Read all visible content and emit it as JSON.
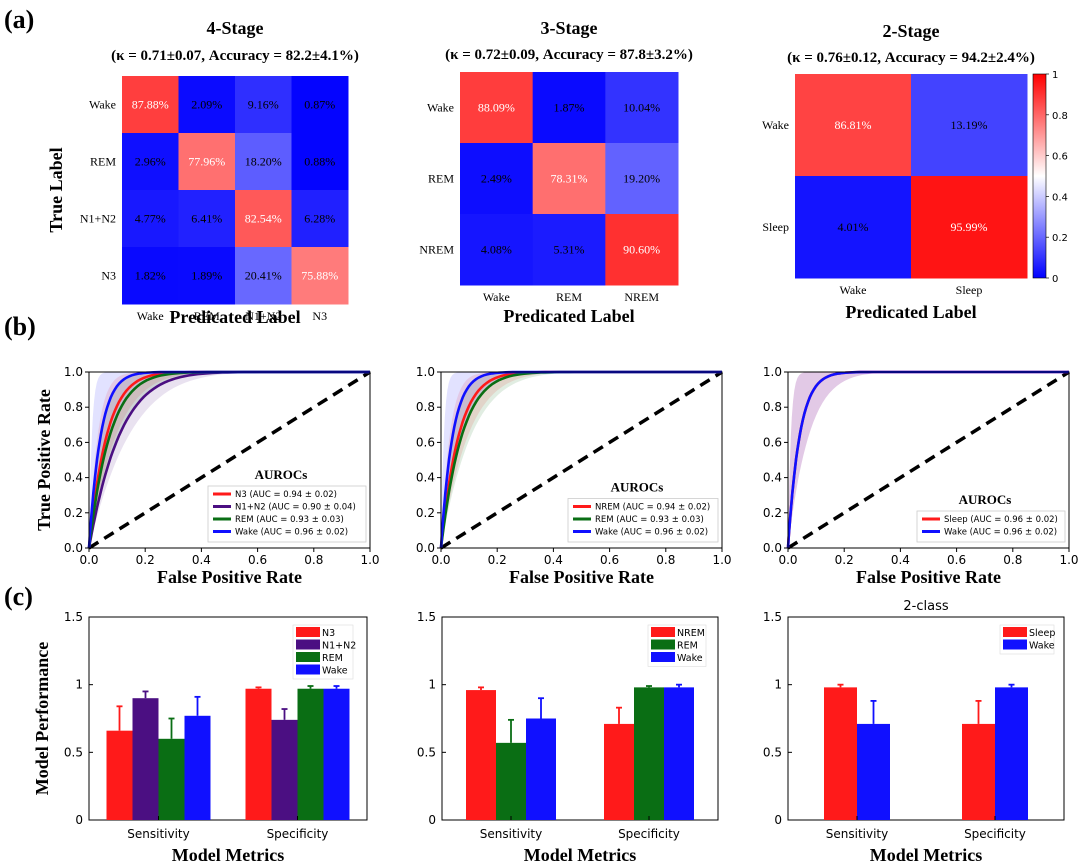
{
  "panel_labels": [
    "(a)",
    "(b)",
    "(c)"
  ],
  "colors": {
    "n3": "#ff1a1a",
    "n1n2": "#4b0f82",
    "rem": "#0a6e14",
    "wake": "#1010ff",
    "nrem": "#ff1a1a",
    "sleep": "#ff1a1a"
  },
  "chart_data": [
    {
      "type": "heatmap",
      "title": "4-Stage",
      "subtitle": "(κ = 0.71±0.07,  Accuracy = 82.2±4.1%)",
      "ylabel": "True Label",
      "xlabel": "Predicated Label",
      "rows": [
        "Wake",
        "REM",
        "N1+N2",
        "N3"
      ],
      "cols": [
        "Wake",
        "REM",
        "N1+N2",
        "N3"
      ],
      "values": [
        [
          87.88,
          2.09,
          9.16,
          0.87
        ],
        [
          2.96,
          77.96,
          18.2,
          0.88
        ],
        [
          4.77,
          6.41,
          82.54,
          6.28
        ],
        [
          1.82,
          1.89,
          20.41,
          75.88
        ]
      ],
      "cell_labels": [
        [
          "87.88%",
          "2.09%",
          "9.16%",
          "0.87%"
        ],
        [
          "2.96%",
          "77.96%",
          "18.20%",
          "0.88%"
        ],
        [
          "4.77%",
          "6.41%",
          "82.54%",
          "6.28%"
        ],
        [
          "1.82%",
          "1.89%",
          "20.41%",
          "75.88%"
        ]
      ]
    },
    {
      "type": "heatmap",
      "title": "3-Stage",
      "subtitle": "(κ = 0.72±0.09,  Accuracy = 87.8±3.2%)",
      "xlabel": "Predicated Label",
      "rows": [
        "Wake",
        "REM",
        "NREM"
      ],
      "cols": [
        "Wake",
        "REM",
        "NREM"
      ],
      "values": [
        [
          88.09,
          1.87,
          10.04
        ],
        [
          2.49,
          78.31,
          19.2
        ],
        [
          4.08,
          5.31,
          90.6
        ]
      ],
      "cell_labels": [
        [
          "88.09%",
          "1.87%",
          "10.04%"
        ],
        [
          "2.49%",
          "78.31%",
          "19.20%"
        ],
        [
          "4.08%",
          "5.31%",
          "90.60%"
        ]
      ]
    },
    {
      "type": "heatmap",
      "title": "2-Stage",
      "subtitle": "(κ = 0.76±0.12,  Accuracy = 94.2±2.4%)",
      "xlabel": "Predicated Label",
      "rows": [
        "Wake",
        "Sleep"
      ],
      "cols": [
        "Wake",
        "Sleep"
      ],
      "values": [
        [
          86.81,
          13.19
        ],
        [
          4.01,
          95.99
        ]
      ],
      "cell_labels": [
        [
          "86.81%",
          "13.19%"
        ],
        [
          "4.01%",
          "95.99%"
        ]
      ],
      "colorbar": {
        "range": [
          0,
          1
        ],
        "ticks": [
          "0",
          "0.2",
          "0.4",
          "0.6",
          "0.8",
          "1"
        ]
      }
    },
    {
      "type": "line",
      "ylabel": "True Positive Rate",
      "xlabel": "False Positive Rate",
      "xlim": [
        0,
        1
      ],
      "ylim": [
        0,
        1
      ],
      "ticks": [
        "0.0",
        "0.2",
        "0.4",
        "0.6",
        "0.8",
        "1.0"
      ],
      "legend_title": "AUROCs",
      "legend_position": "lower-right",
      "series": [
        {
          "name": "N3 (AUC = 0.94 ± 0.02)",
          "color": "#ff1a1a",
          "auc": 0.94
        },
        {
          "name": "N1+N2 (AUC = 0.90 ± 0.04)",
          "color": "#4b0f82",
          "auc": 0.9
        },
        {
          "name": "REM (AUC = 0.93 ± 0.03)",
          "color": "#0a6e14",
          "auc": 0.93
        },
        {
          "name": "Wake (AUC = 0.96 ± 0.02)",
          "color": "#1010ff",
          "auc": 0.96
        }
      ]
    },
    {
      "type": "line",
      "xlabel": "False Positive Rate",
      "xlim": [
        0,
        1
      ],
      "ylim": [
        0,
        1
      ],
      "ticks": [
        "0.0",
        "0.2",
        "0.4",
        "0.6",
        "0.8",
        "1.0"
      ],
      "legend_title": "AUROCs",
      "legend_position": "lower-right",
      "series": [
        {
          "name": "NREM (AUC = 0.94 ± 0.02)",
          "color": "#ff1a1a",
          "auc": 0.94
        },
        {
          "name": "REM (AUC = 0.93 ± 0.03)",
          "color": "#0a6e14",
          "auc": 0.93
        },
        {
          "name": "Wake (AUC = 0.96 ± 0.02)",
          "color": "#1010ff",
          "auc": 0.96
        }
      ]
    },
    {
      "type": "line",
      "xlabel": "False Positive Rate",
      "xlim": [
        0,
        1
      ],
      "ylim": [
        0,
        1
      ],
      "ticks": [
        "0.0",
        "0.2",
        "0.4",
        "0.6",
        "0.8",
        "1.0"
      ],
      "legend_title": "AUROCs",
      "legend_position": "lower-right",
      "series": [
        {
          "name": "Sleep (AUC = 0.96 ± 0.02)",
          "color": "#ff1a1a",
          "auc": 0.96
        },
        {
          "name": "Wake (AUC = 0.96 ± 0.02)",
          "color": "#1010ff",
          "auc": 0.96
        }
      ]
    },
    {
      "type": "bar",
      "ylabel": "Model Performance",
      "xlabel": "Model Metrics",
      "ylim": [
        0,
        1.5
      ],
      "yticks": [
        "0",
        "0.5",
        "1",
        "1.5"
      ],
      "categories": [
        "Sensitivity",
        "Specificity"
      ],
      "legend_position": "top-right",
      "series": [
        {
          "name": "N3",
          "color": "#ff1a1a",
          "values": [
            0.66,
            0.97
          ],
          "errors": [
            0.18,
            0.01
          ]
        },
        {
          "name": "N1+N2",
          "color": "#4b0f82",
          "values": [
            0.9,
            0.74
          ],
          "errors": [
            0.05,
            0.08
          ]
        },
        {
          "name": "REM",
          "color": "#0a6e14",
          "values": [
            0.6,
            0.97
          ],
          "errors": [
            0.15,
            0.02
          ]
        },
        {
          "name": "Wake",
          "color": "#1010ff",
          "values": [
            0.77,
            0.97
          ],
          "errors": [
            0.14,
            0.02
          ]
        }
      ]
    },
    {
      "type": "bar",
      "xlabel": "Model Metrics",
      "ylim": [
        0,
        1.5
      ],
      "yticks": [
        "0",
        "0.5",
        "1",
        "1.5"
      ],
      "categories": [
        "Sensitivity",
        "Specificity"
      ],
      "legend_position": "top-right",
      "series": [
        {
          "name": "NREM",
          "color": "#ff1a1a",
          "values": [
            0.96,
            0.71
          ],
          "errors": [
            0.02,
            0.12
          ]
        },
        {
          "name": "REM",
          "color": "#0a6e14",
          "values": [
            0.57,
            0.98
          ],
          "errors": [
            0.17,
            0.01
          ]
        },
        {
          "name": "Wake",
          "color": "#1010ff",
          "values": [
            0.75,
            0.98
          ],
          "errors": [
            0.15,
            0.02
          ]
        }
      ]
    },
    {
      "type": "bar",
      "title": "2-class",
      "xlabel": "Model Metrics",
      "ylim": [
        0,
        1.5
      ],
      "yticks": [
        "0",
        "0.5",
        "1",
        "1.5"
      ],
      "categories": [
        "Sensitivity",
        "Specificity"
      ],
      "legend_position": "top-right",
      "series": [
        {
          "name": "Sleep",
          "color": "#ff1a1a",
          "values": [
            0.98,
            0.71
          ],
          "errors": [
            0.02,
            0.17
          ]
        },
        {
          "name": "Wake",
          "color": "#1010ff",
          "values": [
            0.71,
            0.98
          ],
          "errors": [
            0.17,
            0.02
          ]
        }
      ]
    }
  ]
}
